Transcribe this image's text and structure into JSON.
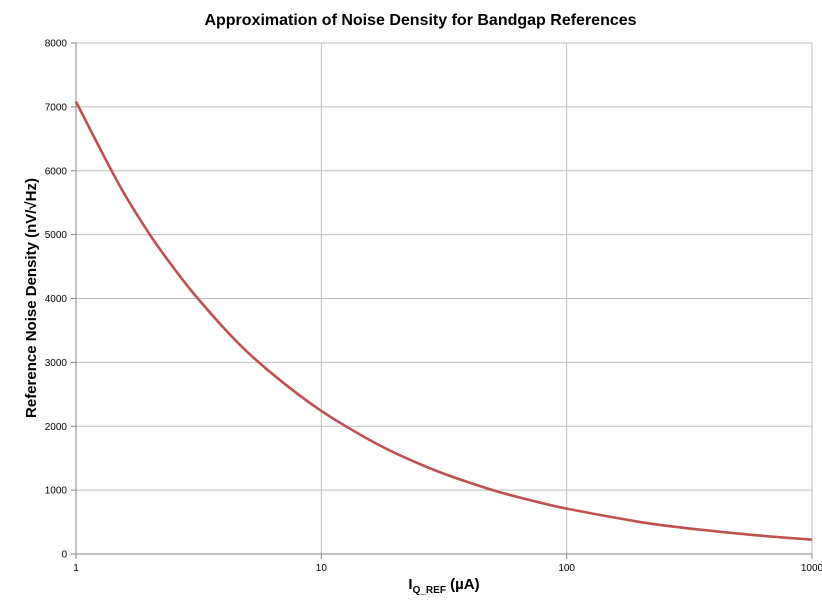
{
  "chart_data": {
    "type": "line",
    "title": "Approximation of Noise Density for Bandgap References",
    "ylabel": "Reference Noise Density (nV/√Hz)",
    "xlabel_main": "I",
    "xlabel_sub": "Q_REF",
    "xlabel_units": " (µA)",
    "x_scale": "log",
    "xlim": [
      1,
      1000
    ],
    "ylim": [
      0,
      8000
    ],
    "grid": true,
    "legend": "none",
    "x_ticks": [
      1,
      10,
      100,
      1000
    ],
    "y_ticks": [
      0,
      1000,
      2000,
      3000,
      4000,
      5000,
      6000,
      7000,
      8000
    ],
    "x_tick_labels": [
      "1",
      "10",
      "100",
      "1000"
    ],
    "y_tick_labels": [
      "0",
      "1000",
      "2000",
      "3000",
      "4000",
      "5000",
      "6000",
      "7000",
      "8000"
    ],
    "series": [
      {
        "color": "#c0504d",
        "x": [
          1,
          1.5,
          2,
          2.5,
          3,
          4,
          5,
          7,
          10,
          15,
          20,
          30,
          50,
          70,
          100,
          200,
          300,
          500,
          700,
          1000
        ],
        "y": [
          7080,
          5780,
          5000,
          4480,
          4090,
          3540,
          3160,
          2680,
          2240,
          1830,
          1580,
          1290,
          1000,
          850,
          710,
          500,
          410,
          320,
          270,
          225
        ]
      }
    ]
  }
}
